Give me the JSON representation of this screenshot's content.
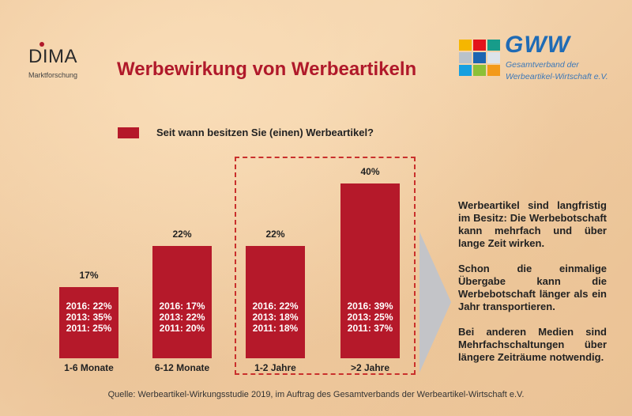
{
  "header": {
    "title": "Werbewirkung von Werbeartikeln",
    "dima_logo": {
      "word": "DIMA",
      "subtitle": "Marktforschung"
    },
    "gww_logo": {
      "brand": "GWW",
      "line1": "Gesamtverband der",
      "line2": "Werbeartikel-Wirtschaft e.V.",
      "squares": [
        "#f5b600",
        "#e3131b",
        "#179c8a",
        "#b9c2cb",
        "#1c65b2",
        "#dde3ea",
        "#16a0e0",
        "#8cc037",
        "#f39a1a"
      ]
    }
  },
  "colors": {
    "bar": "#b5192a",
    "title": "#b0192a",
    "highlight_border": "#c9302c",
    "arrow": "#c3c4c8"
  },
  "chart_data": {
    "type": "bar",
    "title": "Seit wann besitzen Sie (einen) Werbeartikel?",
    "legend": [
      {
        "label": "Seit wann besitzen Sie (einen) Werbeartikel?",
        "color": "#b5192a"
      }
    ],
    "legend_position": "top-left",
    "categories": [
      "1-6 Monate",
      "6-12 Monate",
      "1-2 Jahre",
      ">2 Jahre"
    ],
    "values": [
      17,
      22,
      22,
      40
    ],
    "value_labels": [
      "17%",
      "22%",
      "22%",
      "40%"
    ],
    "unit": "%",
    "comparison": [
      [
        "2016: 22%",
        "2013: 35%",
        "2011: 25%"
      ],
      [
        "2016: 17%",
        "2013: 22%",
        "2011: 20%"
      ],
      [
        "2016: 22%",
        "2013: 18%",
        "2011: 18%"
      ],
      [
        "2016: 39%",
        "2013: 25%",
        "2011: 37%"
      ]
    ],
    "comparison_values": {
      "2016": [
        22,
        17,
        22,
        39
      ],
      "2013": [
        35,
        22,
        18,
        25
      ],
      "2011": [
        25,
        20,
        18,
        37
      ]
    },
    "highlighted_categories": [
      "1-2 Jahre",
      ">2 Jahre"
    ],
    "xlabel": "",
    "ylabel": "",
    "ylim": [
      0,
      40
    ],
    "grid": false
  },
  "side_text": [
    "Werbeartikel sind langfristig im Besitz: Die Werbebotschaft kann mehrfach und über lange Zeit wirken.",
    "Schon die einmalige Übergabe kann die Werbebotschaft länger als ein Jahr transportieren.",
    "Bei anderen Medien sind Mehrfachschaltungen über längere Zeiträume notwendig."
  ],
  "footer": {
    "source": "Quelle: Werbeartikel-Wirkungsstudie 2019, im Auftrag des Gesamtverbands der Werbeartikel-Wirtschaft e.V."
  }
}
